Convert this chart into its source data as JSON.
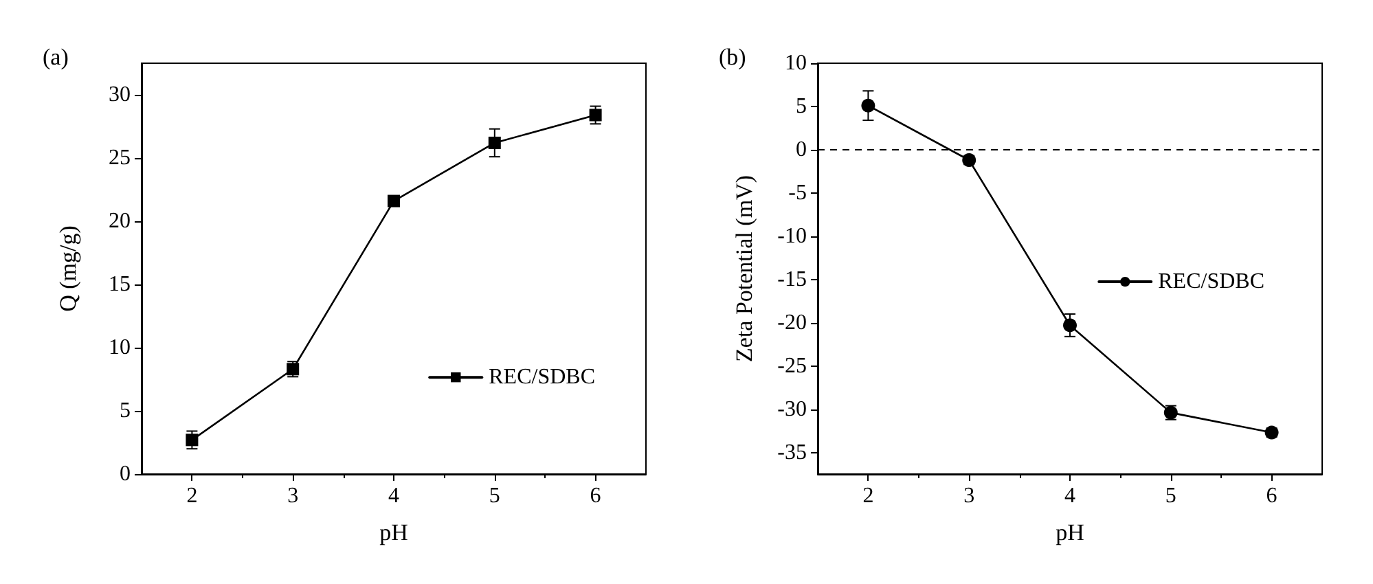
{
  "chart_data": [
    {
      "type": "line",
      "title": "(a)",
      "xlabel": "pH",
      "ylabel": "Q (mg/g)",
      "x": [
        2,
        3,
        4,
        5,
        6
      ],
      "xlim": [
        1.5,
        6.5
      ],
      "xticks": [
        2,
        3,
        4,
        5,
        6
      ],
      "ylim": [
        0,
        32.5
      ],
      "yticks": [
        0,
        5,
        10,
        15,
        20,
        25,
        30
      ],
      "series": [
        {
          "name": "REC/SDBC",
          "color": "#000000",
          "values": [
            2.7,
            8.3,
            21.6,
            26.2,
            28.4
          ],
          "errors": [
            0.7,
            0.6,
            0.4,
            1.1,
            0.7
          ]
        }
      ],
      "marker": "square",
      "line_style": "solid",
      "legend": "right",
      "grid": false
    },
    {
      "type": "line",
      "title": "(b)",
      "xlabel": "pH",
      "ylabel": "Zeta Potential (mV)",
      "x": [
        2,
        3,
        4,
        5,
        6
      ],
      "xlim": [
        1.5,
        6.5
      ],
      "xticks": [
        2,
        3,
        4,
        5,
        6
      ],
      "ylim": [
        -37.5,
        10
      ],
      "yticks": [
        -35,
        -30,
        -25,
        -20,
        -15,
        -10,
        -5,
        0,
        5,
        10
      ],
      "series": [
        {
          "name": "REC/SDBC",
          "color": "#000000",
          "values": [
            5.1,
            -1.2,
            -20.3,
            -30.4,
            -32.7
          ],
          "errors": [
            1.7,
            0.5,
            1.3,
            0.8,
            0.5
          ]
        }
      ],
      "ref_lines": [
        {
          "axis": "y",
          "value": 0,
          "line_style": "dashed",
          "color": "#000000"
        }
      ],
      "marker": "circle",
      "line_style": "solid",
      "legend": "right",
      "grid": false
    }
  ]
}
